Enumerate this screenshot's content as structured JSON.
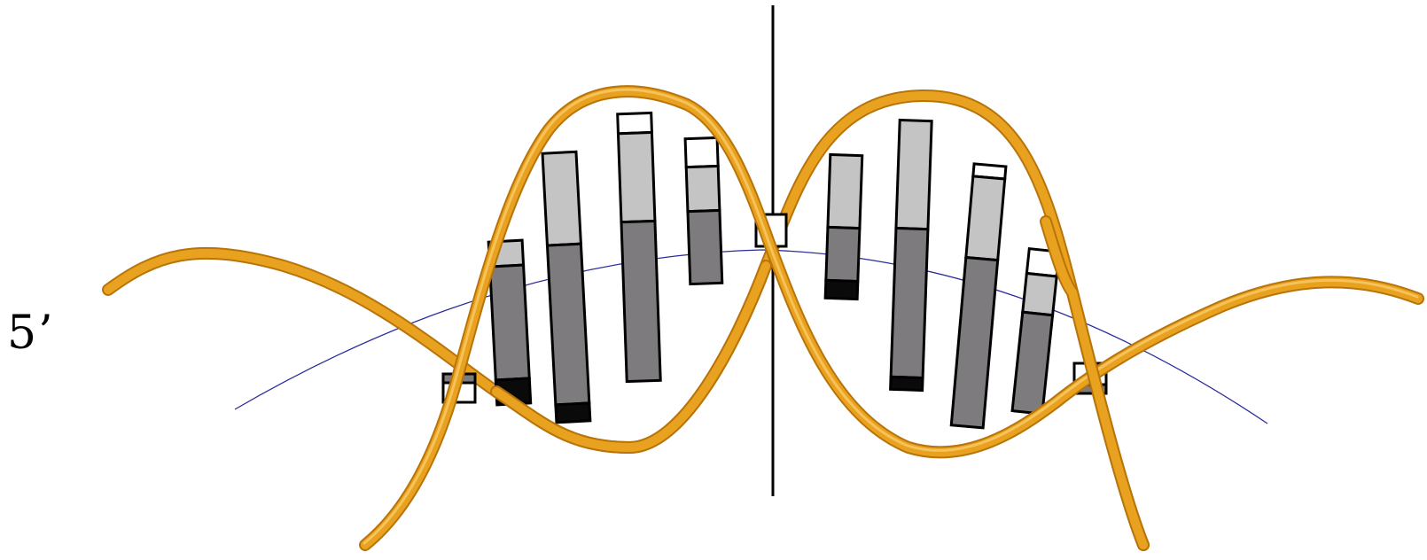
{
  "labels": {
    "five_prime": "5’"
  },
  "colors": {
    "background": "#ffffff",
    "backbone": "#e9a21f",
    "backbone_dark": "#b87408",
    "backbone_light": "#f6c25a",
    "axis": "#000000",
    "helix_curve": "#2b2b9a",
    "base_dark": "#7d7b7d",
    "base_light": "#c4c4c4",
    "base_end": "#0a0a0a",
    "base_cap": "#ffffff"
  }
}
